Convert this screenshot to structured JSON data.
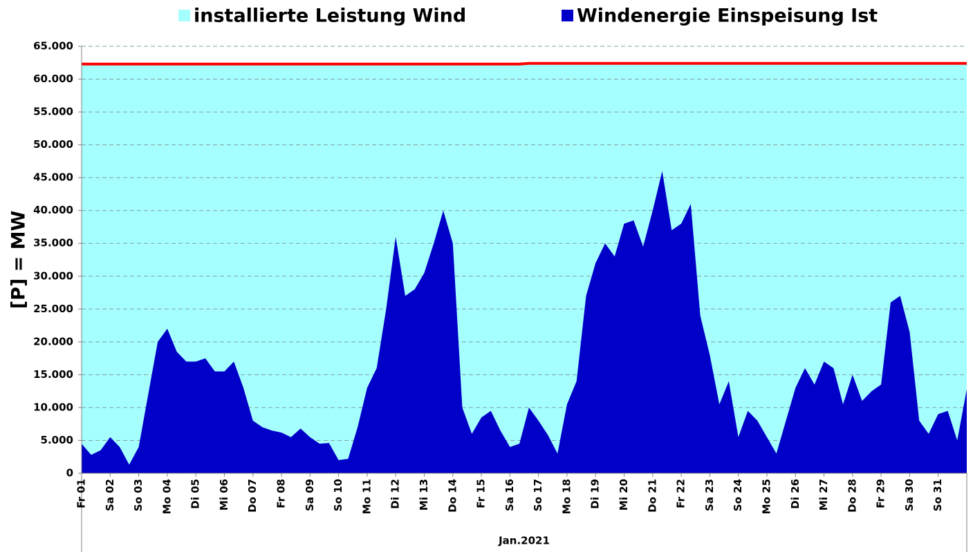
{
  "chart_data": {
    "type": "area",
    "ylabel": "[P] = MW",
    "xlabel": "Jan.2021",
    "ylim": [
      0,
      65000
    ],
    "yticks": [
      0,
      {
        "value": 5000,
        "label": "5.000"
      },
      {
        "value": 10000,
        "label": "10.000"
      },
      {
        "value": 15000,
        "label": "15.000"
      },
      {
        "value": 20000,
        "label": "20.000"
      },
      {
        "value": 25000,
        "label": "25.000"
      },
      {
        "value": 30000,
        "label": "30.000"
      },
      {
        "value": 35000,
        "label": "35.000"
      },
      {
        "value": 40000,
        "label": "40.000"
      },
      {
        "value": 45000,
        "label": "45.000"
      },
      {
        "value": 50000,
        "label": "50.000"
      },
      {
        "value": 55000,
        "label": "55.000"
      },
      {
        "value": 60000,
        "label": "60.000"
      },
      {
        "value": 65000,
        "label": "65.000"
      }
    ],
    "grid": true,
    "categories": [
      "Fr 01",
      null,
      null,
      "Sa 02",
      null,
      null,
      "So 03",
      null,
      null,
      "Mo 04",
      null,
      null,
      "Di 05",
      null,
      null,
      "Mi 06",
      null,
      null,
      "Do 07",
      null,
      null,
      "Fr 08",
      null,
      null,
      "Sa 09",
      null,
      null,
      "So 10",
      null,
      null,
      "Mo 11",
      null,
      null,
      "Di 12",
      null,
      null,
      "Mi 13",
      null,
      null,
      "Do 14",
      null,
      null,
      "Fr 15",
      null,
      null,
      "Sa 16",
      null,
      null,
      "So 17",
      null,
      null,
      "Mo 18",
      null,
      null,
      "Di 19",
      null,
      null,
      "Mi 20",
      null,
      null,
      "Do 21",
      null,
      null,
      "Fr 22",
      null,
      null,
      "Sa 23",
      null,
      null,
      "So 24",
      null,
      null,
      "Mo 25",
      null,
      null,
      "Di 26",
      null,
      null,
      "Mi 27",
      null,
      null,
      "Do 28",
      null,
      null,
      "Fr 29",
      null,
      null,
      "Sa 30",
      null,
      null,
      "So 31",
      null,
      null,
      null
    ],
    "series": [
      {
        "name": "installierte Leistung Wind",
        "color": "#a6ffff",
        "line_color": "#ff0000",
        "values": [
          62300,
          62300,
          62300,
          62300,
          62300,
          62300,
          62300,
          62300,
          62300,
          62300,
          62300,
          62300,
          62300,
          62300,
          62300,
          62300,
          62300,
          62300,
          62300,
          62300,
          62300,
          62300,
          62300,
          62300,
          62300,
          62300,
          62300,
          62300,
          62300,
          62300,
          62300,
          62300,
          62300,
          62300,
          62300,
          62300,
          62300,
          62300,
          62300,
          62300,
          62300,
          62300,
          62300,
          62300,
          62300,
          62300,
          62300,
          62400,
          62400,
          62400,
          62400,
          62400,
          62400,
          62400,
          62400,
          62400,
          62400,
          62400,
          62400,
          62400,
          62400,
          62400,
          62400,
          62400,
          62400,
          62400,
          62400,
          62400,
          62400,
          62400,
          62400,
          62400,
          62400,
          62400,
          62400,
          62400,
          62400,
          62400,
          62400,
          62400,
          62400,
          62400,
          62400,
          62400,
          62400,
          62400,
          62400,
          62400,
          62400,
          62400,
          62400,
          62400,
          62400,
          62400
        ]
      },
      {
        "name": "Windenergie Einspeisung Ist",
        "color": "#0000c8",
        "values": [
          4500,
          2800,
          3500,
          5500,
          4000,
          1300,
          4000,
          12000,
          20000,
          22000,
          18500,
          17000,
          17000,
          17500,
          15500,
          15500,
          17000,
          13000,
          8000,
          7000,
          6500,
          6200,
          5500,
          6800,
          5500,
          4500,
          4600,
          2000,
          2200,
          7000,
          13000,
          16000,
          25000,
          36000,
          27000,
          28000,
          30500,
          35000,
          40000,
          35000,
          10000,
          6000,
          8500,
          9500,
          6500,
          4000,
          4500,
          10000,
          8000,
          5800,
          3000,
          10500,
          14000,
          27000,
          32000,
          35000,
          33000,
          38000,
          38500,
          34500,
          40000,
          46000,
          37000,
          38000,
          41000,
          24000,
          18000,
          10500,
          14000,
          5500,
          9500,
          8000,
          5500,
          3000,
          8000,
          13000,
          16000,
          13500,
          17000,
          16000,
          10500,
          15000,
          11000,
          12500,
          13500,
          26000,
          27000,
          21500,
          8000,
          6000,
          9000,
          9500,
          5000,
          12800
        ]
      }
    ]
  }
}
